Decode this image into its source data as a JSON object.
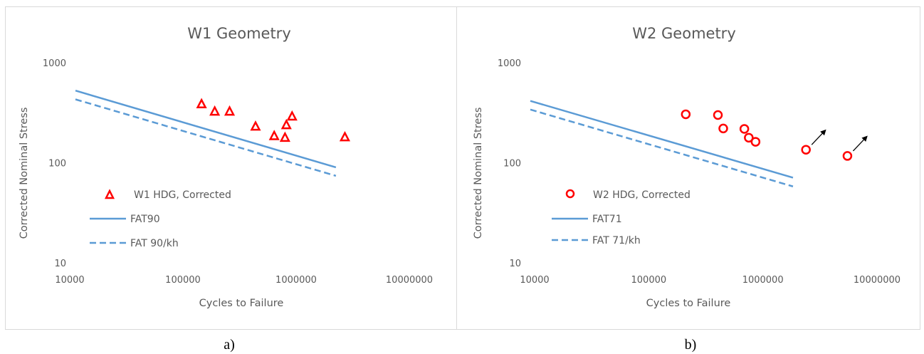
{
  "chart_data": [
    {
      "type": "scatter",
      "title": "W1 Geometry",
      "xlabel": "Cycles to Failure",
      "ylabel": "Corrected Nominal Stress",
      "xscale": "log",
      "yscale": "log",
      "xlim": [
        10000,
        10000000
      ],
      "ylim": [
        10,
        1000
      ],
      "x_ticks": [
        "10000",
        "100000",
        "1000000",
        "10000000"
      ],
      "y_ticks": [
        "10",
        "100",
        "1000"
      ],
      "grid": false,
      "legend": "left",
      "caption": "a)",
      "series": [
        {
          "name": "W1 HDG, Corrected",
          "type": "scatter",
          "marker": "triangle",
          "color": "#ff0000",
          "x": [
            130000,
            170000,
            230000,
            390000,
            570000,
            710000,
            730000,
            820000,
            2400000
          ],
          "y": [
            385,
            325,
            325,
            230,
            185,
            178,
            238,
            290,
            180
          ],
          "runout": [
            false,
            false,
            false,
            false,
            false,
            false,
            false,
            false,
            false
          ]
        },
        {
          "name": "FAT90",
          "type": "line",
          "style": "solid",
          "color": "#5b9bd5",
          "x": [
            10000,
            2000000
          ],
          "y": [
            526,
            90
          ]
        },
        {
          "name": "FAT 90/kh",
          "type": "line",
          "style": "dashed",
          "color": "#5b9bd5",
          "x": [
            10000,
            2000000
          ],
          "y": [
            430,
            74
          ]
        }
      ]
    },
    {
      "type": "scatter",
      "title": "W2 Geometry",
      "xlabel": "Cycles to Failure",
      "ylabel": "Corrected Nominal Stress",
      "xscale": "log",
      "yscale": "log",
      "xlim": [
        10000,
        10000000
      ],
      "ylim": [
        10,
        1000
      ],
      "x_ticks": [
        "10000",
        "100000",
        "1000000",
        "10000000"
      ],
      "y_ticks": [
        "10",
        "100",
        "1000"
      ],
      "grid": false,
      "legend": "left",
      "caption": "b)",
      "series": [
        {
          "name": "W2 HDG, Corrected",
          "type": "scatter",
          "marker": "circle",
          "color": "#ff0000",
          "x": [
            230000,
            440000,
            490000,
            750000,
            820000,
            940000,
            2600000,
            6000000
          ],
          "y": [
            305,
            300,
            220,
            218,
            178,
            162,
            135,
            117
          ],
          "runout": [
            false,
            false,
            false,
            false,
            false,
            false,
            true,
            true
          ]
        },
        {
          "name": "FAT71",
          "type": "line",
          "style": "solid",
          "color": "#5b9bd5",
          "x": [
            10000,
            2000000
          ],
          "y": [
            415,
            71
          ]
        },
        {
          "name": "FAT 71/kh",
          "type": "line",
          "style": "dashed",
          "color": "#5b9bd5",
          "x": [
            10000,
            2000000
          ],
          "y": [
            340,
            58
          ]
        }
      ]
    }
  ]
}
